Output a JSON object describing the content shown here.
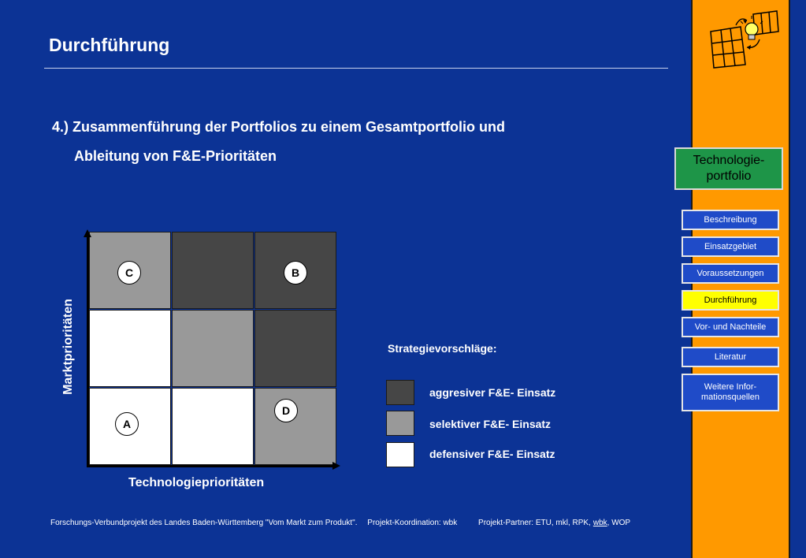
{
  "page": {
    "title": "Durchführung",
    "heading_line1": "4.) Zusammenführung der Portfolios zu einem Gesamtportfolio und",
    "heading_line2": "Ableitung von F&E-Prioritäten"
  },
  "diagram": {
    "ylabel": "Marktprioritäten",
    "xlabel": "Technologieprioritäten",
    "cells": [
      [
        "mid",
        "dark",
        "dark"
      ],
      [
        "light",
        "mid",
        "dark"
      ],
      [
        "light",
        "light",
        "mid"
      ]
    ],
    "markers": [
      "C",
      "B",
      "D",
      "A"
    ]
  },
  "legend": {
    "title": "Strategievorschläge:",
    "items": [
      {
        "label": "aggresiver F&E- Einsatz",
        "color": "#464646"
      },
      {
        "label": "selektiver F&E- Einsatz",
        "color": "#999999"
      },
      {
        "label": "defensiver F&E- Einsatz",
        "color": "#ffffff"
      }
    ]
  },
  "footer": {
    "project": "Forschungs-Verbundprojekt des Landes Baden-Württemberg \"Vom Markt zum Produkt\".",
    "coordination": "Projekt-Koordination: wbk",
    "partners_prefix": "Projekt-Partner: ETU, mkl, RPK,",
    "partners_link": "wbk",
    "partners_suffix": ", WOP"
  },
  "sidebar": {
    "section_line1": "Technologie-",
    "section_line2": "portfolio",
    "nav": [
      {
        "line1": "Beschreibung",
        "line2": ""
      },
      {
        "line1": "Einsatzgebiet",
        "line2": ""
      },
      {
        "line1": "Voraussetzungen",
        "line2": ""
      },
      {
        "line1": "Durchführung",
        "line2": ""
      },
      {
        "line1": "Vor- und Nachteile",
        "line2": ""
      },
      {
        "line1": "Literatur",
        "line2": ""
      },
      {
        "line1": "Weitere Infor-",
        "line2": "mationsquellen"
      }
    ],
    "active_index": 3,
    "colors": {
      "background": "#ff9900",
      "button": "#1f4bc8",
      "active": "#ffff00",
      "section": "#1e9548"
    }
  },
  "colors": {
    "page_background": "#0c3395"
  }
}
